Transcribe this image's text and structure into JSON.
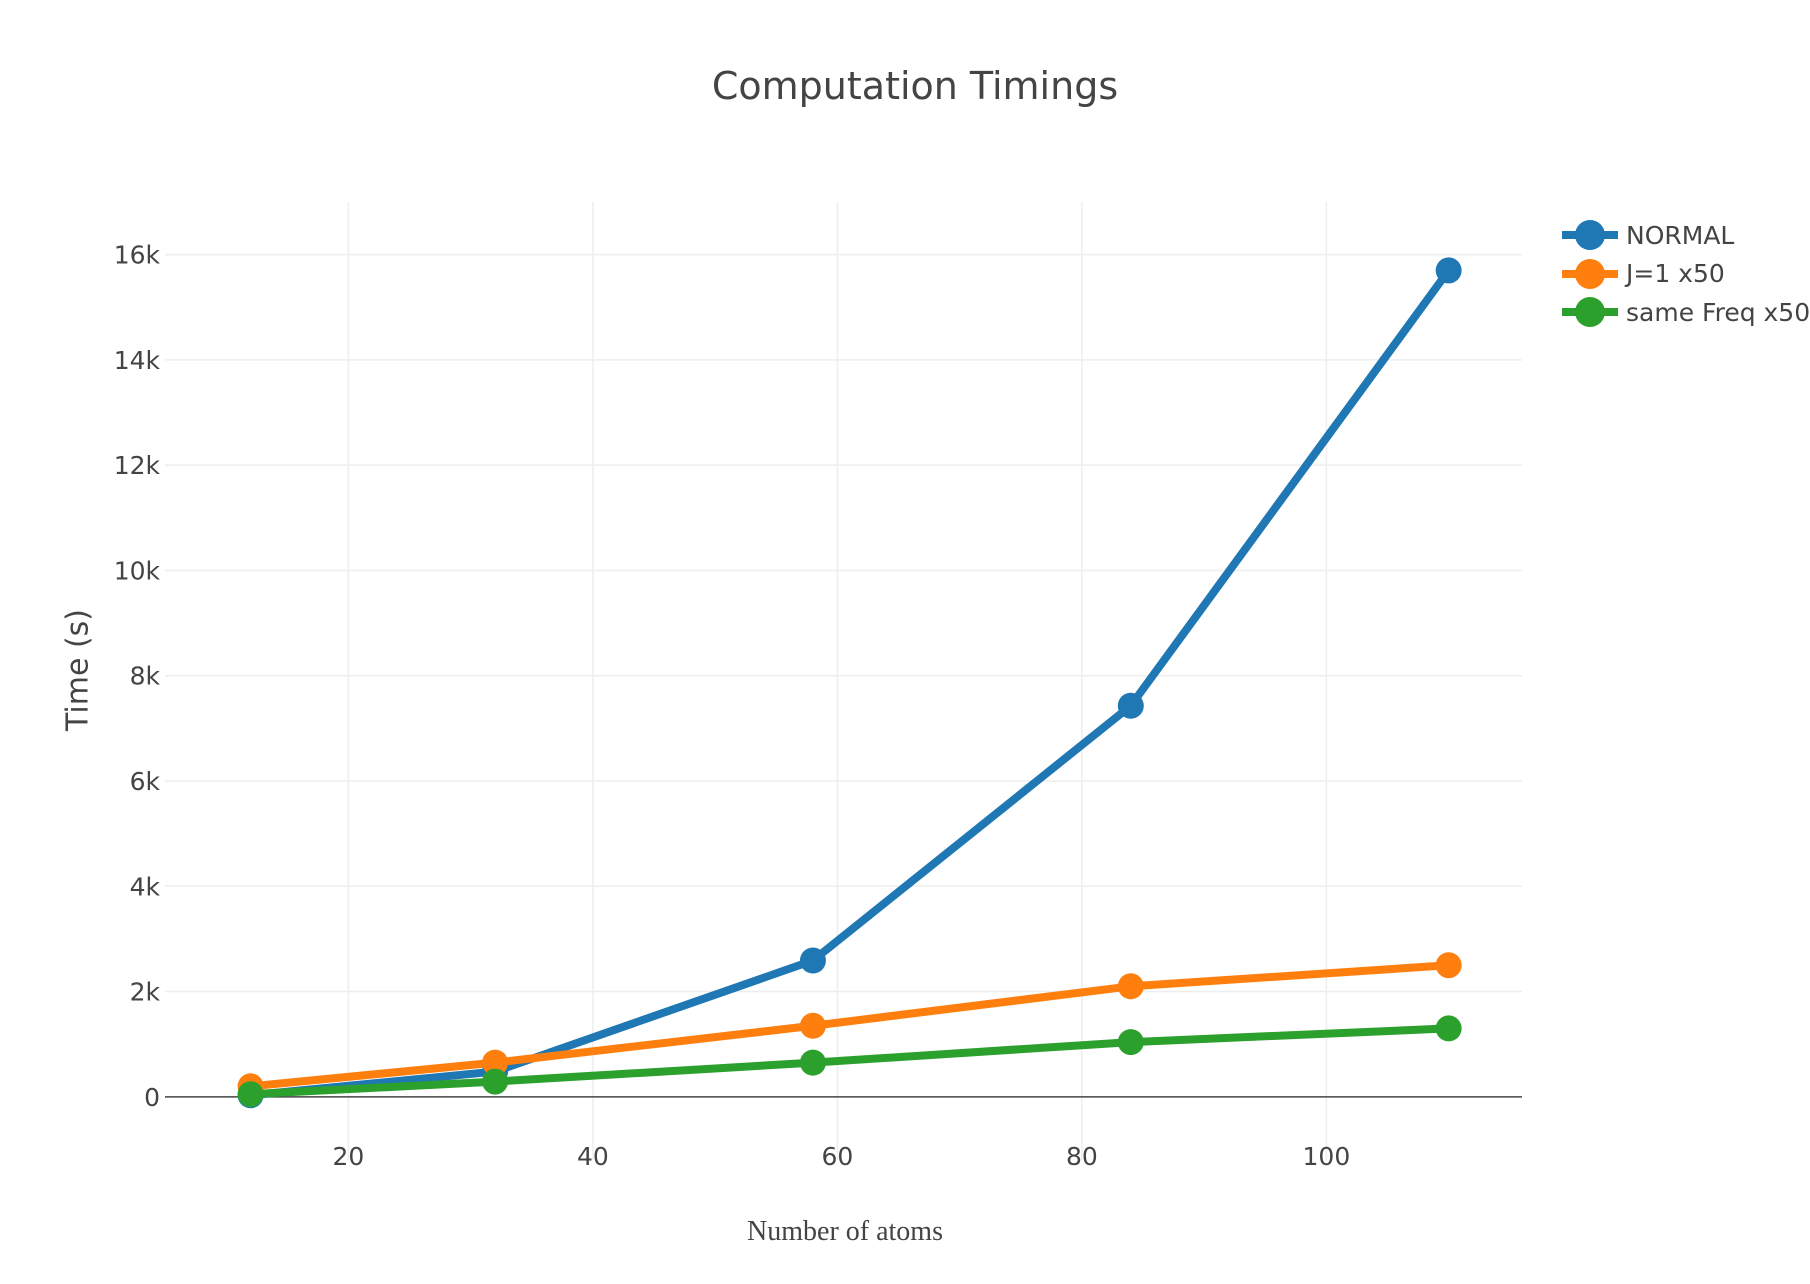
{
  "chart_data": {
    "type": "line",
    "title": "Computation Timings",
    "xlabel": "Number of atoms",
    "ylabel": "Time (s)",
    "xlim": [
      5,
      116
    ],
    "ylim": [
      -1200,
      17000
    ],
    "x_ticks": [
      20,
      40,
      60,
      80,
      100
    ],
    "y_ticks": [
      0,
      2000,
      4000,
      6000,
      8000,
      10000,
      12000,
      14000,
      16000
    ],
    "y_tick_labels": [
      "0",
      "2k",
      "4k",
      "6k",
      "8k",
      "10k",
      "12k",
      "14k",
      "16k"
    ],
    "grid": true,
    "legend_position": "top-right",
    "x": [
      12,
      32,
      58,
      84,
      110
    ],
    "series": [
      {
        "name": "NORMAL",
        "color": "#1f77b4",
        "values": [
          30,
          480,
          2590,
          7430,
          15700
        ]
      },
      {
        "name": "J=1 x50",
        "color": "#ff7f0e",
        "values": [
          200,
          650,
          1350,
          2100,
          2500
        ]
      },
      {
        "name": "same Freq x50",
        "color": "#2ca02c",
        "values": [
          50,
          290,
          650,
          1040,
          1300
        ]
      }
    ]
  }
}
